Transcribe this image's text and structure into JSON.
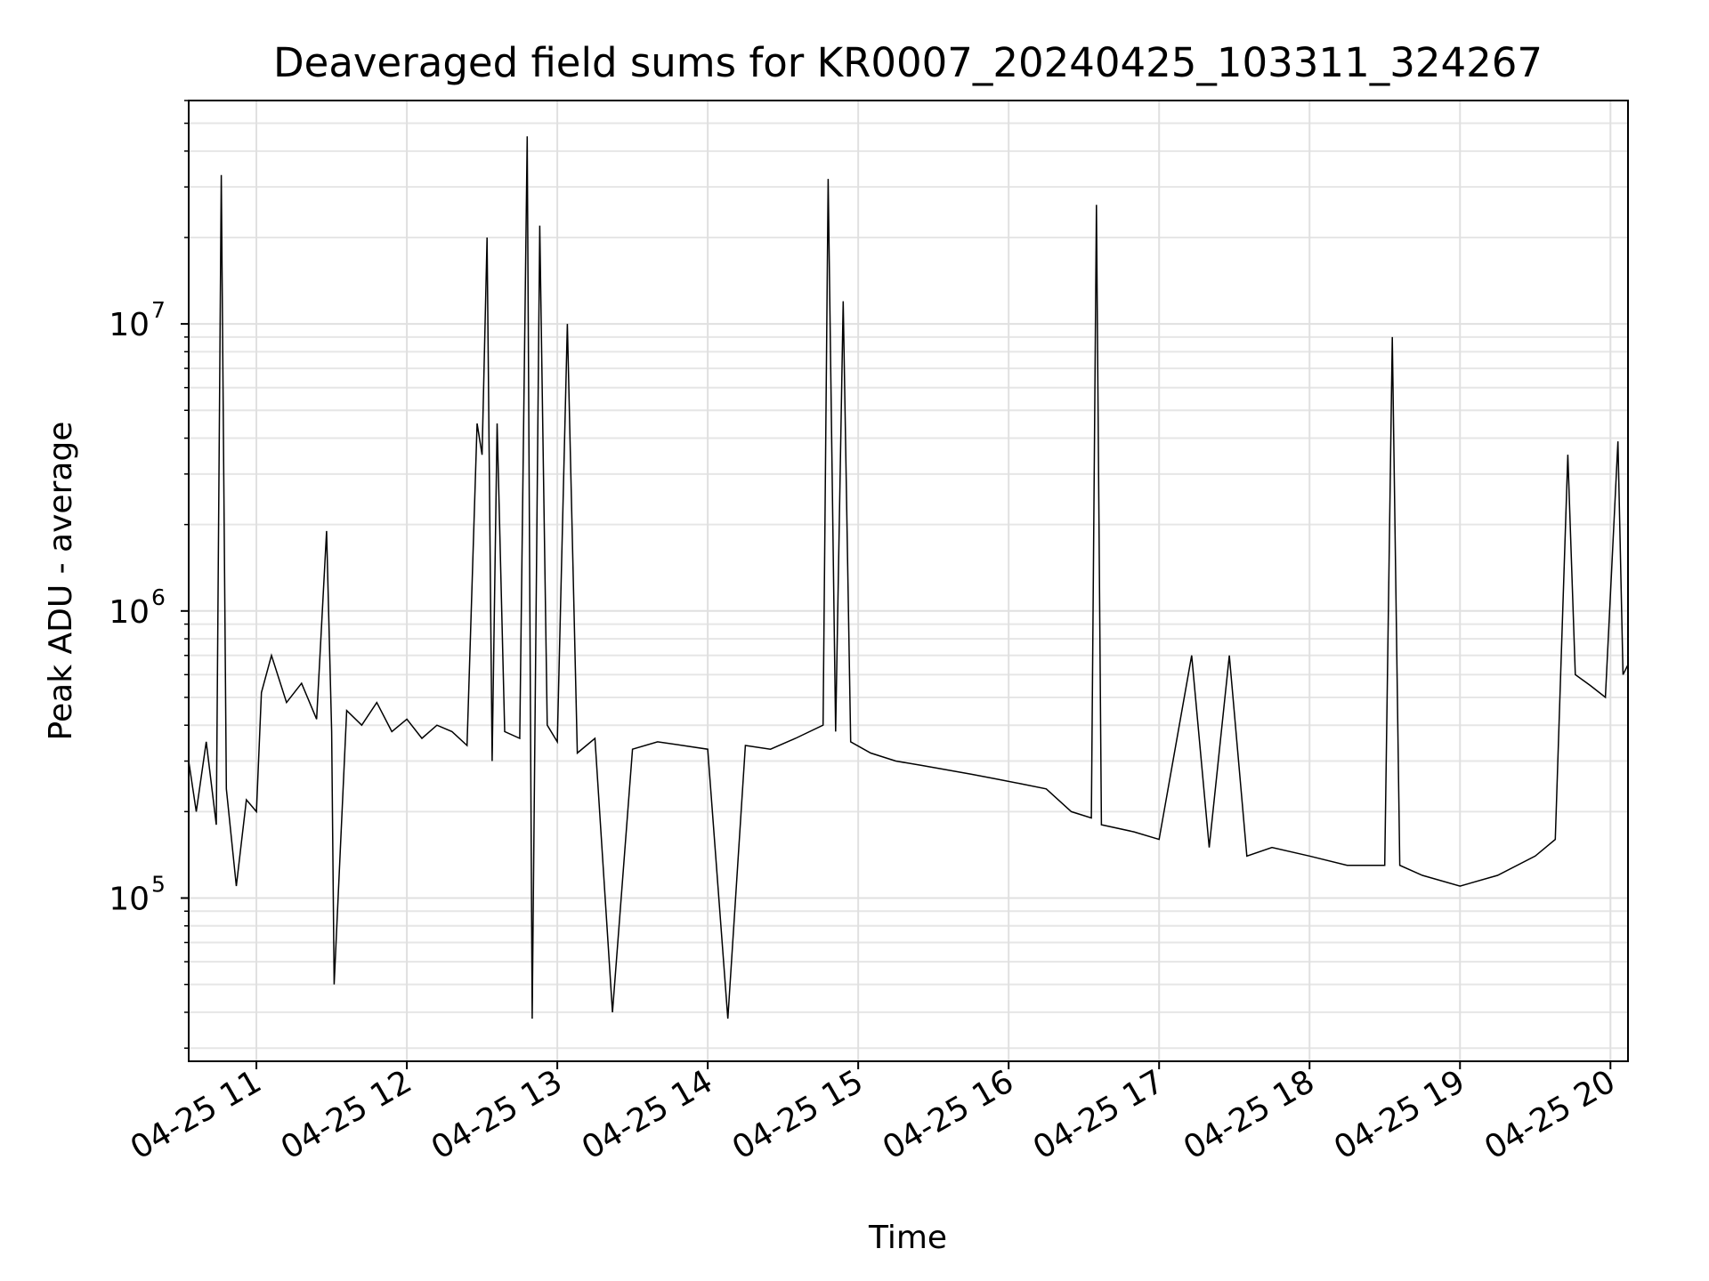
{
  "chart_data": {
    "type": "line",
    "title": "Deaveraged field sums for KR0007_20240425_103311_324267",
    "xlabel": "Time",
    "ylabel": "Peak ADU - average",
    "y_scale": "log",
    "ylim": [
      27000,
      60000000
    ],
    "xlim": [
      "2024-04-25 10:33",
      "2024-04-25 20:07"
    ],
    "grid": "major and minor",
    "line_color": "#000000",
    "x_ticks": [
      {
        "t": "2024-04-25 11:00",
        "label": "04-25 11"
      },
      {
        "t": "2024-04-25 12:00",
        "label": "04-25 12"
      },
      {
        "t": "2024-04-25 13:00",
        "label": "04-25 13"
      },
      {
        "t": "2024-04-25 14:00",
        "label": "04-25 14"
      },
      {
        "t": "2024-04-25 15:00",
        "label": "04-25 15"
      },
      {
        "t": "2024-04-25 16:00",
        "label": "04-25 16"
      },
      {
        "t": "2024-04-25 17:00",
        "label": "04-25 17"
      },
      {
        "t": "2024-04-25 18:00",
        "label": "04-25 18"
      },
      {
        "t": "2024-04-25 19:00",
        "label": "04-25 19"
      },
      {
        "t": "2024-04-25 20:00",
        "label": "04-25 20"
      }
    ],
    "y_ticks": [
      {
        "value": 100000,
        "base": "10",
        "exp": "5"
      },
      {
        "value": 1000000,
        "base": "10",
        "exp": "6"
      },
      {
        "value": 10000000,
        "base": "10",
        "exp": "7"
      }
    ],
    "series": [
      {
        "points": [
          [
            "2024-04-25 10:33",
            300000
          ],
          [
            "2024-04-25 10:36",
            200000
          ],
          [
            "2024-04-25 10:40",
            350000
          ],
          [
            "2024-04-25 10:44",
            180000
          ],
          [
            "2024-04-25 10:46",
            33000000
          ],
          [
            "2024-04-25 10:48",
            240000
          ],
          [
            "2024-04-25 10:52",
            110000
          ],
          [
            "2024-04-25 10:56",
            220000
          ],
          [
            "2024-04-25 11:00",
            200000
          ],
          [
            "2024-04-25 11:02",
            520000
          ],
          [
            "2024-04-25 11:06",
            700000
          ],
          [
            "2024-04-25 11:12",
            480000
          ],
          [
            "2024-04-25 11:18",
            560000
          ],
          [
            "2024-04-25 11:24",
            420000
          ],
          [
            "2024-04-25 11:28",
            1900000
          ],
          [
            "2024-04-25 11:30",
            380000
          ],
          [
            "2024-04-25 11:31",
            50000
          ],
          [
            "2024-04-25 11:36",
            450000
          ],
          [
            "2024-04-25 11:42",
            400000
          ],
          [
            "2024-04-25 11:48",
            480000
          ],
          [
            "2024-04-25 11:54",
            380000
          ],
          [
            "2024-04-25 12:00",
            420000
          ],
          [
            "2024-04-25 12:06",
            360000
          ],
          [
            "2024-04-25 12:12",
            400000
          ],
          [
            "2024-04-25 12:18",
            380000
          ],
          [
            "2024-04-25 12:24",
            340000
          ],
          [
            "2024-04-25 12:28",
            4500000
          ],
          [
            "2024-04-25 12:30",
            3500000
          ],
          [
            "2024-04-25 12:32",
            20000000
          ],
          [
            "2024-04-25 12:34",
            300000
          ],
          [
            "2024-04-25 12:36",
            4500000
          ],
          [
            "2024-04-25 12:39",
            380000
          ],
          [
            "2024-04-25 12:45",
            360000
          ],
          [
            "2024-04-25 12:48",
            45000000
          ],
          [
            "2024-04-25 12:50",
            38000
          ],
          [
            "2024-04-25 12:53",
            22000000
          ],
          [
            "2024-04-25 12:56",
            400000
          ],
          [
            "2024-04-25 13:00",
            350000
          ],
          [
            "2024-04-25 13:04",
            10000000
          ],
          [
            "2024-04-25 13:08",
            320000
          ],
          [
            "2024-04-25 13:15",
            360000
          ],
          [
            "2024-04-25 13:22",
            40000
          ],
          [
            "2024-04-25 13:30",
            330000
          ],
          [
            "2024-04-25 13:40",
            350000
          ],
          [
            "2024-04-25 13:50",
            340000
          ],
          [
            "2024-04-25 14:00",
            330000
          ],
          [
            "2024-04-25 14:08",
            38000
          ],
          [
            "2024-04-25 14:15",
            340000
          ],
          [
            "2024-04-25 14:25",
            330000
          ],
          [
            "2024-04-25 14:35",
            360000
          ],
          [
            "2024-04-25 14:46",
            400000
          ],
          [
            "2024-04-25 14:48",
            32000000
          ],
          [
            "2024-04-25 14:51",
            380000
          ],
          [
            "2024-04-25 14:54",
            12000000
          ],
          [
            "2024-04-25 14:57",
            350000
          ],
          [
            "2024-04-25 15:05",
            320000
          ],
          [
            "2024-04-25 15:15",
            300000
          ],
          [
            "2024-04-25 15:25",
            290000
          ],
          [
            "2024-04-25 15:35",
            280000
          ],
          [
            "2024-04-25 15:45",
            270000
          ],
          [
            "2024-04-25 15:55",
            260000
          ],
          [
            "2024-04-25 16:05",
            250000
          ],
          [
            "2024-04-25 16:15",
            240000
          ],
          [
            "2024-04-25 16:25",
            200000
          ],
          [
            "2024-04-25 16:33",
            190000
          ],
          [
            "2024-04-25 16:35",
            26000000
          ],
          [
            "2024-04-25 16:37",
            180000
          ],
          [
            "2024-04-25 16:50",
            170000
          ],
          [
            "2024-04-25 17:00",
            160000
          ],
          [
            "2024-04-25 17:13",
            700000
          ],
          [
            "2024-04-25 17:20",
            150000
          ],
          [
            "2024-04-25 17:28",
            700000
          ],
          [
            "2024-04-25 17:35",
            140000
          ],
          [
            "2024-04-25 17:45",
            150000
          ],
          [
            "2024-04-25 18:00",
            140000
          ],
          [
            "2024-04-25 18:15",
            130000
          ],
          [
            "2024-04-25 18:30",
            130000
          ],
          [
            "2024-04-25 18:33",
            9000000
          ],
          [
            "2024-04-25 18:36",
            130000
          ],
          [
            "2024-04-25 18:45",
            120000
          ],
          [
            "2024-04-25 19:00",
            110000
          ],
          [
            "2024-04-25 19:15",
            120000
          ],
          [
            "2024-04-25 19:30",
            140000
          ],
          [
            "2024-04-25 19:38",
            160000
          ],
          [
            "2024-04-25 19:43",
            3500000
          ],
          [
            "2024-04-25 19:46",
            600000
          ],
          [
            "2024-04-25 19:52",
            550000
          ],
          [
            "2024-04-25 19:58",
            500000
          ],
          [
            "2024-04-25 20:03",
            3900000
          ],
          [
            "2024-04-25 20:05",
            600000
          ],
          [
            "2024-04-25 20:07",
            650000
          ]
        ]
      }
    ]
  }
}
